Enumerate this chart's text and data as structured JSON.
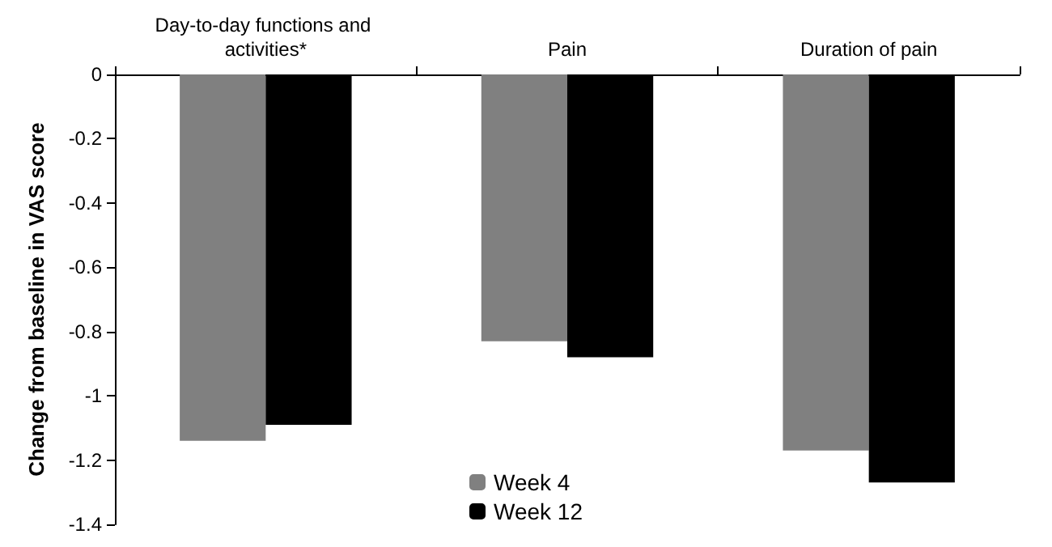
{
  "chart_data": {
    "type": "bar",
    "ylabel": "Change from baseline in VAS score",
    "categories": [
      "Day-to-day functions and activities*",
      "Pain",
      "Duration of pain"
    ],
    "series": [
      {
        "name": "Week 4",
        "color": "#808080",
        "values": [
          -1.14,
          -0.83,
          -1.17
        ]
      },
      {
        "name": "Week 12",
        "color": "#000000",
        "values": [
          -1.09,
          -0.88,
          -1.27
        ]
      }
    ],
    "ylim": [
      -1.4,
      0
    ],
    "yticks": [
      0,
      -0.2,
      -0.4,
      -0.6,
      -0.8,
      -1,
      -1.2,
      -1.4
    ],
    "grid": false,
    "legend": "bottom"
  }
}
